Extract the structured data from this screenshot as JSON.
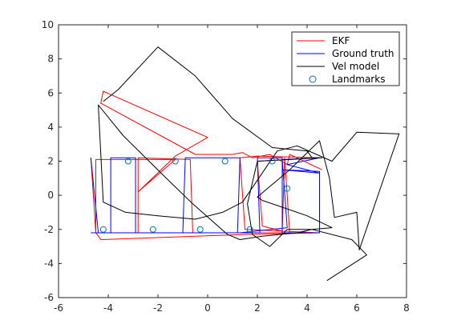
{
  "chart_data": {
    "type": "line",
    "xlim": [
      -6,
      8
    ],
    "ylim": [
      -6,
      10
    ],
    "x_ticks": [
      -6,
      -4,
      -2,
      0,
      2,
      4,
      6,
      8
    ],
    "y_ticks": [
      -6,
      -4,
      -2,
      0,
      2,
      4,
      6,
      8,
      10
    ],
    "x_tick_labels": [
      "-6",
      "-4",
      "-2",
      "0",
      "2",
      "4",
      "6",
      "8"
    ],
    "y_tick_labels": [
      "-6",
      "-4",
      "-2",
      "0",
      "2",
      "4",
      "6",
      "8",
      "10"
    ],
    "grid": false,
    "legend_position": "top-right",
    "legend": [
      "EKF",
      "Ground truth",
      "Vel model",
      "Landmarks"
    ],
    "series": [
      {
        "name": "EKF",
        "color": "#ff0000",
        "points": [
          [
            -4.7,
            2.2
          ],
          [
            -4.5,
            -2.2
          ],
          [
            -4.3,
            -2.6
          ],
          [
            1.5,
            -2.3
          ],
          [
            4.5,
            -2.2
          ],
          [
            1.5,
            -2.0
          ],
          [
            1.3,
            2.2
          ],
          [
            2.0,
            2.3
          ],
          [
            4.5,
            2.2
          ],
          [
            2.0,
            2.0
          ],
          [
            2.2,
            -1.8
          ],
          [
            3.0,
            -2.1
          ],
          [
            3.1,
            2.2
          ],
          [
            3.3,
            -2.2
          ],
          [
            1.5,
            -2.2
          ],
          [
            -0.6,
            -2.2
          ],
          [
            -0.7,
            2.1
          ],
          [
            -2.8,
            2.2
          ],
          [
            -2.8,
            -2.2
          ],
          [
            -4.5,
            -2.2
          ],
          [
            -4.5,
            2.1
          ],
          [
            -1.3,
            2.1
          ],
          [
            -2.8,
            0.2
          ],
          [
            -1.3,
            2.3
          ],
          [
            0.0,
            3.4
          ],
          [
            -4.2,
            6.1
          ],
          [
            -4.3,
            5.4
          ],
          [
            -0.5,
            2.4
          ],
          [
            1.0,
            2.4
          ],
          [
            1.4,
            2.5
          ],
          [
            1.8,
            2.2
          ],
          [
            2.5,
            2.4
          ],
          [
            3.2,
            1.8
          ],
          [
            3.3,
            2.4
          ],
          [
            4.6,
            1.5
          ]
        ]
      },
      {
        "name": "Ground truth",
        "color": "#0000ff",
        "points": [
          [
            -4.7,
            2.2
          ],
          [
            -4.4,
            -2.2
          ],
          [
            -3.9,
            -2.2
          ],
          [
            -3.9,
            2.2
          ],
          [
            -2.9,
            2.2
          ],
          [
            -2.9,
            -2.2
          ],
          [
            -1.0,
            -2.2
          ],
          [
            -0.9,
            2.2
          ],
          [
            1.3,
            2.2
          ],
          [
            1.2,
            -2.2
          ],
          [
            2.1,
            -2.2
          ],
          [
            2.0,
            2.2
          ],
          [
            3.0,
            2.2
          ],
          [
            3.0,
            -2.2
          ],
          [
            4.5,
            -2.2
          ],
          [
            4.5,
            1.4
          ],
          [
            3.0,
            1.5
          ],
          [
            4.5,
            1.3
          ],
          [
            3.2,
            1.8
          ],
          [
            4.5,
            2.2
          ],
          [
            3.0,
            2.1
          ],
          [
            3.2,
            -1.9
          ],
          [
            1.3,
            -2.2
          ],
          [
            -4.7,
            -2.2
          ]
        ]
      },
      {
        "name": "Vel model",
        "color": "#000000",
        "points": [
          [
            -4.2,
            5.5
          ],
          [
            -3.6,
            6.2
          ],
          [
            -2.0,
            8.7
          ],
          [
            -0.5,
            7.0
          ],
          [
            1.0,
            4.5
          ],
          [
            2.6,
            2.8
          ],
          [
            4.0,
            2.6
          ],
          [
            4.2,
            2.2
          ],
          [
            4.6,
            2.2
          ],
          [
            2.0,
            2.0
          ],
          [
            1.6,
            -0.5
          ],
          [
            1.8,
            -2.3
          ],
          [
            2.1,
            -2.6
          ],
          [
            2.5,
            -3.0
          ],
          [
            3.2,
            -2.0
          ],
          [
            4.2,
            -2.0
          ],
          [
            5.0,
            -1.9
          ],
          [
            4.0,
            -1.2
          ],
          [
            3.0,
            -0.7
          ],
          [
            2.2,
            -0.3
          ],
          [
            2.0,
            -0.1
          ],
          [
            3.3,
            1.5
          ],
          [
            4.5,
            3.2
          ],
          [
            4.9,
            1.0
          ],
          [
            5.1,
            -1.3
          ],
          [
            6.0,
            -1.0
          ],
          [
            6.1,
            -3.2
          ],
          [
            7.7,
            3.6
          ],
          [
            6.0,
            3.7
          ],
          [
            5.0,
            2.0
          ],
          [
            3.6,
            2.9
          ],
          [
            2.8,
            2.6
          ],
          [
            1.4,
            -0.4
          ],
          [
            0.6,
            -1.0
          ],
          [
            -0.5,
            -1.4
          ],
          [
            -2.0,
            -1.2
          ],
          [
            -3.3,
            -1.0
          ],
          [
            -4.2,
            -0.4
          ],
          [
            -4.4,
            5.3
          ],
          [
            -3.4,
            3.5
          ],
          [
            -1.8,
            1.2
          ],
          [
            -0.6,
            -0.5
          ],
          [
            0.8,
            -2.3
          ],
          [
            1.3,
            -2.6
          ],
          [
            2.2,
            -2.4
          ],
          [
            3.6,
            -2.2
          ],
          [
            4.2,
            -2.0
          ],
          [
            5.8,
            -2.6
          ],
          [
            6.4,
            -3.5
          ],
          [
            4.8,
            -5.0
          ]
        ]
      }
    ],
    "landmarks": {
      "name": "Landmarks",
      "color": "#0072bd",
      "points": [
        [
          -3.2,
          2.0
        ],
        [
          -1.3,
          2.0
        ],
        [
          0.7,
          2.0
        ],
        [
          2.6,
          2.0
        ],
        [
          -4.2,
          -2.0
        ],
        [
          -2.2,
          -2.0
        ],
        [
          -0.3,
          -2.0
        ],
        [
          1.7,
          -2.0
        ],
        [
          3.2,
          0.4
        ]
      ]
    }
  }
}
